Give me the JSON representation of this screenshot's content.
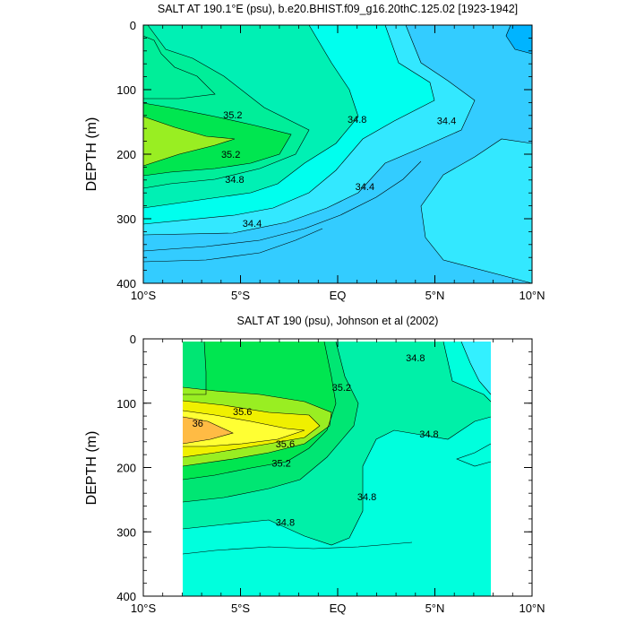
{
  "chart_data": [
    {
      "type": "contour",
      "title": "SALT AT 190.1°E (psu), b.e20.BHIST.f09_g16.20thC.125.02 [1923-1942]",
      "ylabel": "DEPTH (m)",
      "xlabel": "",
      "x_range": [
        -10,
        10
      ],
      "y_range": [
        0,
        400
      ],
      "y_reversed": true,
      "x_ticks": [
        {
          "value": -10,
          "label": "10°S"
        },
        {
          "value": -5,
          "label": "5°S"
        },
        {
          "value": 0,
          "label": "EQ"
        },
        {
          "value": 5,
          "label": "5°N"
        },
        {
          "value": 10,
          "label": "10°N"
        }
      ],
      "y_ticks": [
        {
          "value": 0,
          "label": "0"
        },
        {
          "value": 100,
          "label": "100"
        },
        {
          "value": 200,
          "label": "200"
        },
        {
          "value": 300,
          "label": "300"
        },
        {
          "value": 400,
          "label": "400"
        }
      ],
      "contour_labels": [
        {
          "text": "35.2",
          "x": -5.4,
          "y": 139
        },
        {
          "text": "35.2",
          "x": -5.5,
          "y": 200
        },
        {
          "text": "34.8",
          "x": -5.3,
          "y": 239
        },
        {
          "text": "34.4",
          "x": -4.4,
          "y": 307
        },
        {
          "text": "34.8",
          "x": 1.0,
          "y": 146
        },
        {
          "text": "34.4",
          "x": 1.4,
          "y": 250
        },
        {
          "text": "34.4",
          "x": 5.6,
          "y": 148
        }
      ],
      "colors": {
        "c34.0": "#00b4ff",
        "c34.2": "#33ccff",
        "c34.4": "#33e8ff",
        "c34.6": "#00ffee",
        "c34.8": "#00f0b4",
        "c35.0": "#00ee99",
        "c35.2": "#00e650",
        "c35.4": "#99ee22"
      }
    },
    {
      "type": "contour",
      "title": "SALT AT 190 (psu), Johnson et al (2002)",
      "ylabel": "DEPTH (m)",
      "xlabel": "",
      "x_range": [
        -10,
        10
      ],
      "y_range": [
        0,
        400
      ],
      "y_reversed": true,
      "data_x_range": [
        -8,
        8
      ],
      "data_y_range": [
        5,
        400
      ],
      "x_ticks": [
        {
          "value": -10,
          "label": "10°S"
        },
        {
          "value": -5,
          "label": "5°S"
        },
        {
          "value": 0,
          "label": "EQ"
        },
        {
          "value": 5,
          "label": "5°N"
        },
        {
          "value": 10,
          "label": "10°N"
        }
      ],
      "y_ticks": [
        {
          "value": 0,
          "label": "0"
        },
        {
          "value": 100,
          "label": "100"
        },
        {
          "value": 200,
          "label": "200"
        },
        {
          "value": 300,
          "label": "300"
        },
        {
          "value": 400,
          "label": "400"
        }
      ],
      "contour_labels": [
        {
          "text": "35.6",
          "x": -4.9,
          "y": 113
        },
        {
          "text": "36",
          "x": -7.2,
          "y": 131
        },
        {
          "text": "35.6",
          "x": -2.7,
          "y": 163
        },
        {
          "text": "35.2",
          "x": -2.9,
          "y": 193
        },
        {
          "text": "35.2",
          "x": 0.2,
          "y": 75
        },
        {
          "text": "34.8",
          "x": 4.0,
          "y": 29
        },
        {
          "text": "34.8",
          "x": 4.7,
          "y": 148
        },
        {
          "text": "34.8",
          "x": 1.5,
          "y": 245
        },
        {
          "text": "34.8",
          "x": -2.7,
          "y": 285
        }
      ],
      "colors": {
        "c34.4": "#33f0ff",
        "c34.6": "#00ffdd",
        "c34.8": "#00f0a8",
        "c35.0": "#00e673",
        "c35.2": "#00e650",
        "c35.4": "#99ee22",
        "c35.6": "#f0f000",
        "c35.8": "#ffff33",
        "c36.0": "#ffbb44"
      }
    }
  ]
}
